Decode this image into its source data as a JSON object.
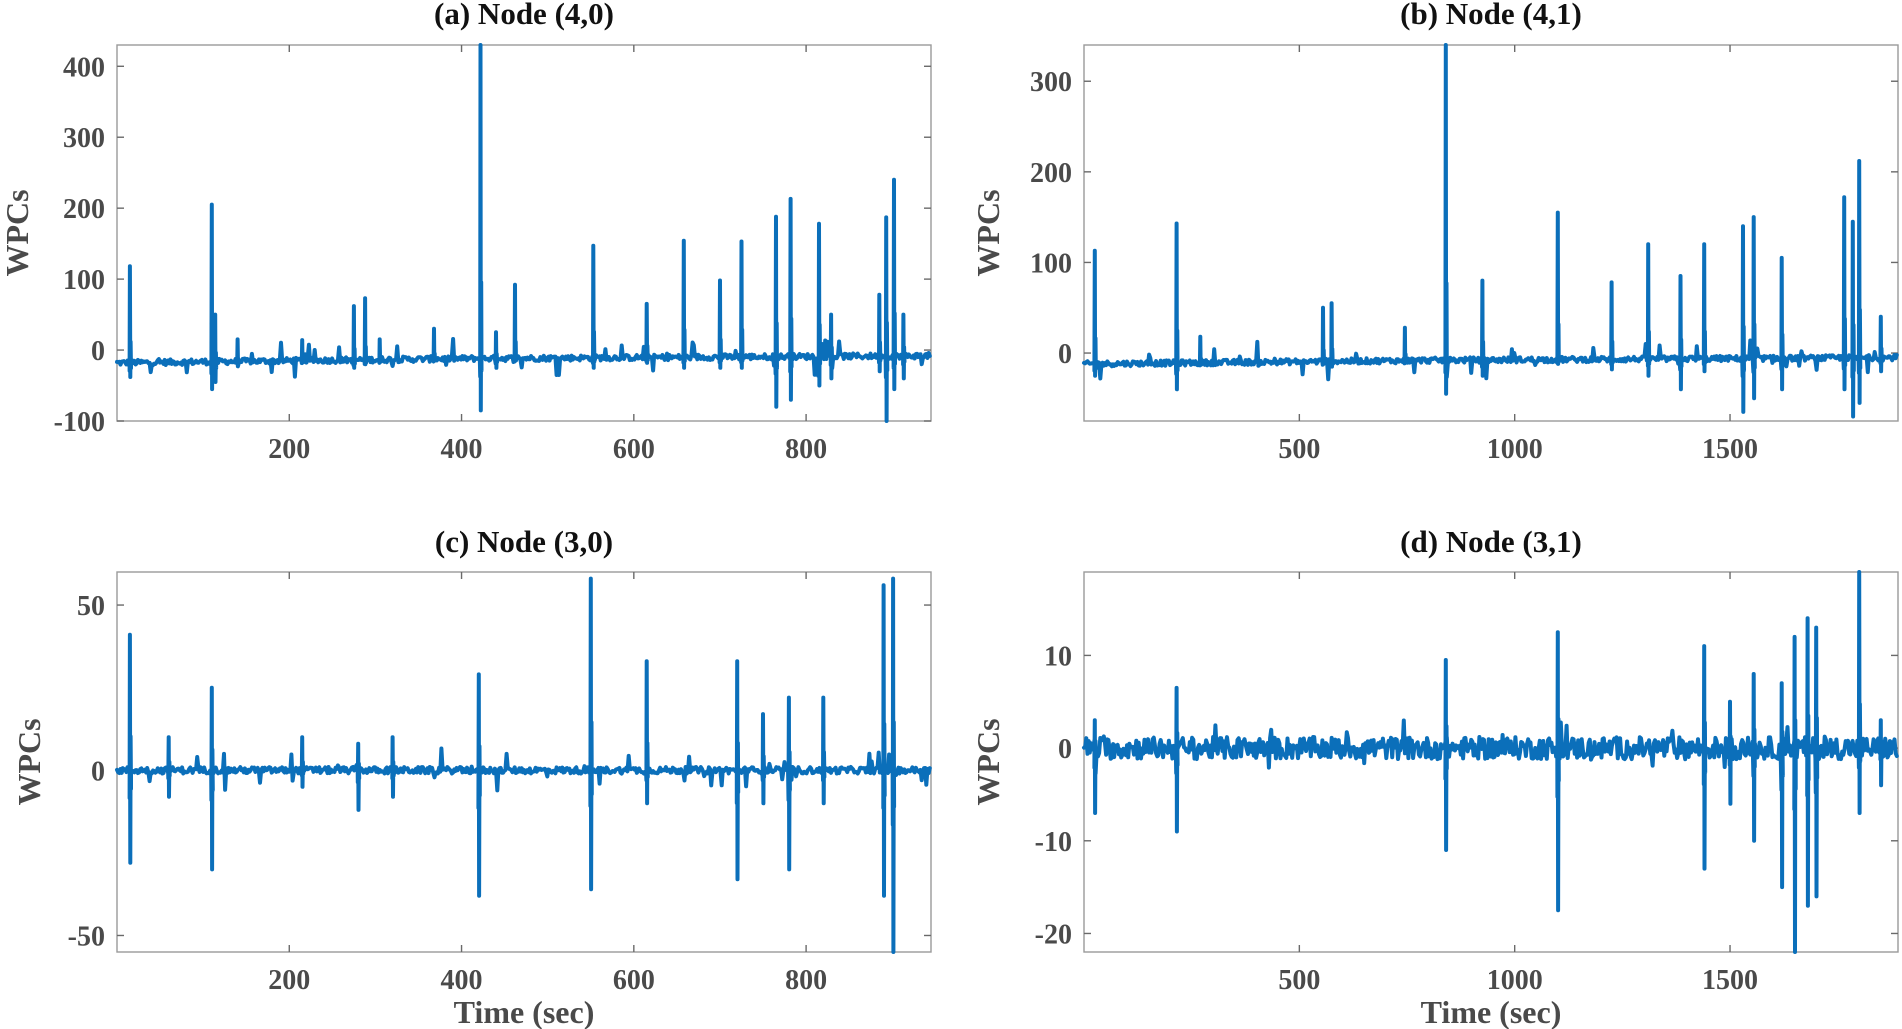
{
  "figure": {
    "trace_color": "#0b6fba",
    "text_color": "#4a4a4a"
  },
  "chart_data": [
    {
      "id": "a",
      "type": "line",
      "title": "(a) Node (4,0)",
      "xlabel": "",
      "ylabel": "WPCs",
      "xlim": [
        0,
        945
      ],
      "ylim": [
        -100,
        430
      ],
      "xticks": [
        200,
        400,
        600,
        800
      ],
      "yticks": [
        -100,
        0,
        100,
        200,
        300,
        400
      ],
      "yticklabels": [
        "-100",
        "0",
        "100",
        "200",
        "300",
        "400"
      ],
      "baseline": [
        [
          0,
          -18
        ],
        [
          400,
          -12
        ],
        [
          945,
          -8
        ]
      ],
      "noise": 4,
      "spikes": [
        [
          15,
          118,
          -38
        ],
        [
          110,
          205,
          -55
        ],
        [
          114,
          50,
          -45
        ],
        [
          140,
          15,
          -12
        ],
        [
          215,
          14,
          -12
        ],
        [
          275,
          62,
          -25
        ],
        [
          288,
          73,
          -20
        ],
        [
          305,
          15,
          -15
        ],
        [
          368,
          30,
          -12
        ],
        [
          422,
          430,
          -85
        ],
        [
          440,
          25,
          -25
        ],
        [
          462,
          92,
          -15
        ],
        [
          553,
          147,
          -25
        ],
        [
          615,
          65,
          -18
        ],
        [
          658,
          154,
          -25
        ],
        [
          700,
          98,
          -25
        ],
        [
          725,
          153,
          -25
        ],
        [
          765,
          188,
          -80
        ],
        [
          782,
          213,
          -70
        ],
        [
          815,
          178,
          -50
        ],
        [
          829,
          50,
          -40
        ],
        [
          885,
          78,
          -30
        ],
        [
          893,
          187,
          -100
        ],
        [
          902,
          240,
          -55
        ],
        [
          913,
          50,
          -40
        ]
      ]
    },
    {
      "id": "b",
      "type": "line",
      "title": "(b) Node (4,1)",
      "xlabel": "",
      "ylabel": "WPCs",
      "xlim": [
        0,
        1890
      ],
      "ylim": [
        -75,
        340
      ],
      "xticks": [
        500,
        1000,
        1500
      ],
      "yticks": [
        0,
        100,
        200,
        300
      ],
      "yticklabels": [
        "0",
        "100",
        "200",
        "300"
      ],
      "baseline": [
        [
          0,
          -12
        ],
        [
          800,
          -8
        ],
        [
          1890,
          -5
        ]
      ],
      "noise": 3,
      "spikes": [
        [
          25,
          113,
          -25
        ],
        [
          215,
          143,
          -40
        ],
        [
          270,
          18,
          -10
        ],
        [
          555,
          50,
          -12
        ],
        [
          575,
          55,
          -15
        ],
        [
          745,
          28,
          -10
        ],
        [
          840,
          340,
          -45
        ],
        [
          925,
          80,
          -25
        ],
        [
          1100,
          155,
          -12
        ],
        [
          1225,
          78,
          -18
        ],
        [
          1310,
          120,
          -25
        ],
        [
          1385,
          85,
          -40
        ],
        [
          1440,
          120,
          -20
        ],
        [
          1530,
          140,
          -65
        ],
        [
          1555,
          150,
          -50
        ],
        [
          1620,
          105,
          -40
        ],
        [
          1765,
          172,
          -40
        ],
        [
          1785,
          145,
          -70
        ],
        [
          1800,
          212,
          -55
        ],
        [
          1850,
          40,
          -20
        ]
      ]
    },
    {
      "id": "c",
      "type": "line",
      "title": "(c) Node (3,0)",
      "xlabel": "Time (sec)",
      "ylabel": "WPCs",
      "xlim": [
        0,
        945
      ],
      "ylim": [
        -55,
        60
      ],
      "xticks": [
        200,
        400,
        600,
        800
      ],
      "yticks": [
        -50,
        0,
        50
      ],
      "yticklabels": [
        "-50",
        "0",
        "50"
      ],
      "baseline": [
        [
          0,
          0
        ],
        [
          945,
          0
        ]
      ],
      "noise": 1,
      "spikes": [
        [
          15,
          41,
          -28
        ],
        [
          110,
          25,
          -30
        ],
        [
          60,
          10,
          -8
        ],
        [
          215,
          10,
          -5
        ],
        [
          280,
          8,
          -12
        ],
        [
          320,
          10,
          -8
        ],
        [
          420,
          29,
          -38
        ],
        [
          550,
          58,
          -36
        ],
        [
          615,
          33,
          -10
        ],
        [
          720,
          33,
          -33
        ],
        [
          750,
          17,
          -10
        ],
        [
          780,
          22,
          -30
        ],
        [
          820,
          22,
          -10
        ],
        [
          890,
          56,
          -38
        ],
        [
          901,
          58,
          -55
        ]
      ]
    },
    {
      "id": "d",
      "type": "line",
      "title": "(d) Node (3,1)",
      "xlabel": "Time (sec)",
      "ylabel": "WPCs",
      "xlim": [
        0,
        1890
      ],
      "ylim": [
        -22,
        19
      ],
      "xticks": [
        500,
        1000,
        1500
      ],
      "yticks": [
        -20,
        -10,
        0,
        10
      ],
      "yticklabels": [
        "-20",
        "-10",
        "0",
        "10"
      ],
      "baseline": [
        [
          0,
          0
        ],
        [
          1890,
          0
        ]
      ],
      "noise": 1.2,
      "spikes": [
        [
          25,
          3,
          -7
        ],
        [
          215,
          6.5,
          -9
        ],
        [
          840,
          9.5,
          -11
        ],
        [
          1100,
          12.5,
          -17.5
        ],
        [
          1440,
          11,
          -13
        ],
        [
          1500,
          5,
          -6
        ],
        [
          1555,
          8,
          -10
        ],
        [
          1620,
          7,
          -15
        ],
        [
          1650,
          12,
          -22
        ],
        [
          1680,
          14,
          -17
        ],
        [
          1700,
          13,
          -16
        ],
        [
          1800,
          19,
          -7
        ],
        [
          1850,
          3,
          -4
        ]
      ]
    }
  ]
}
